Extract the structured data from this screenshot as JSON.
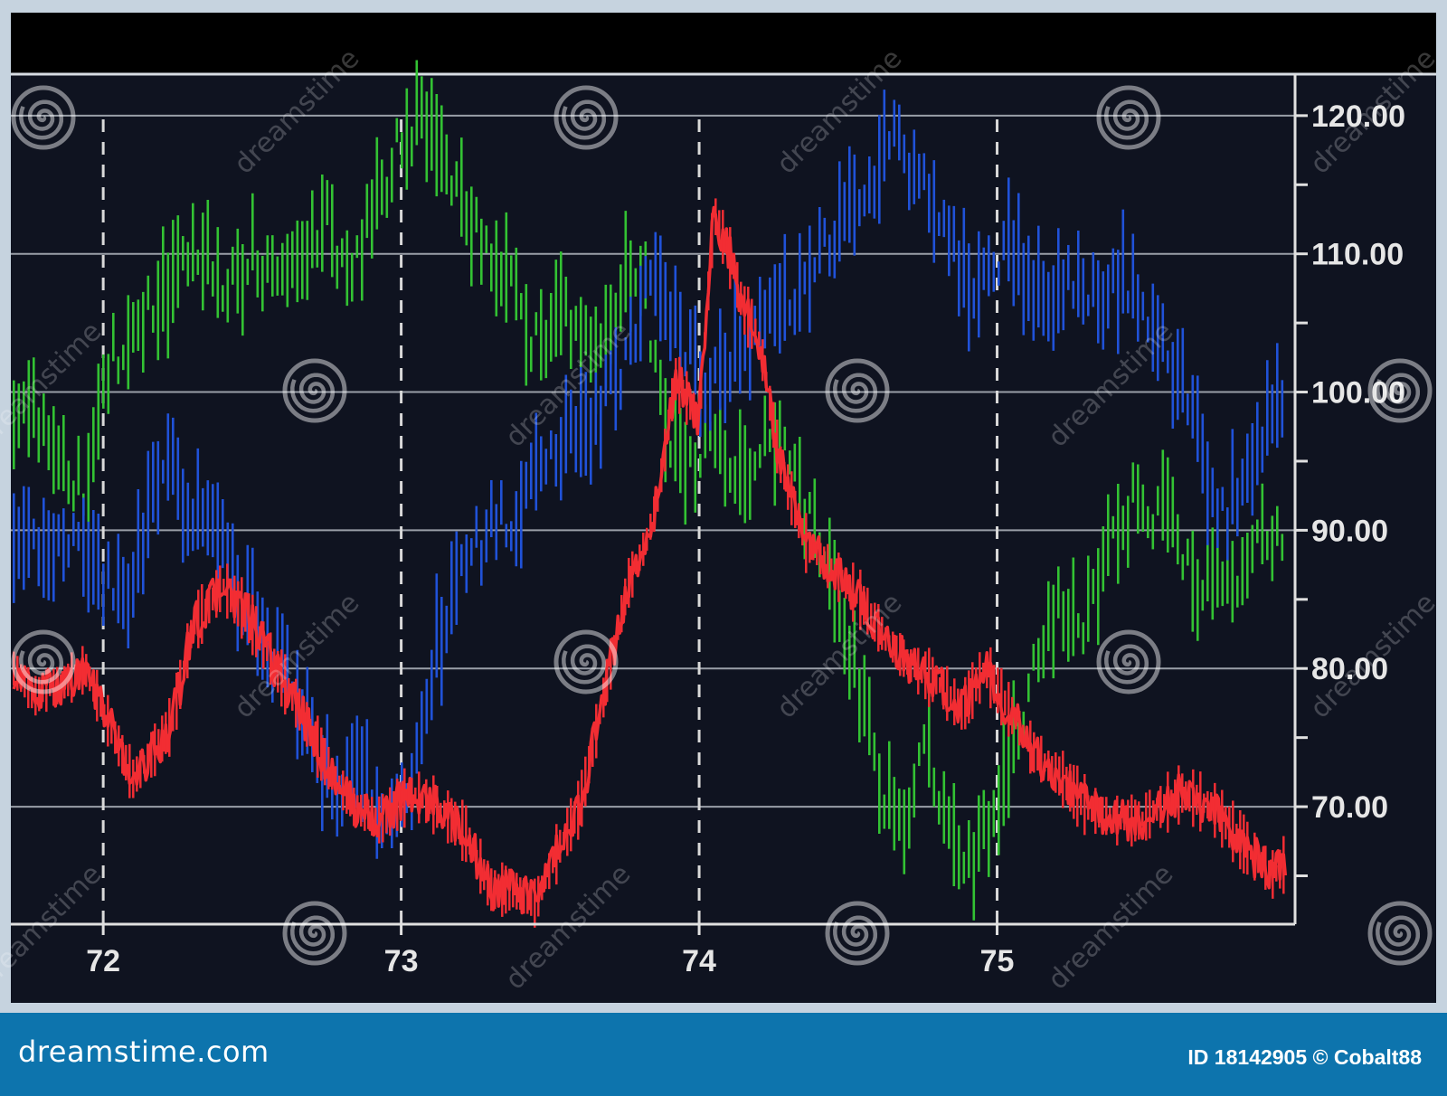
{
  "chart_data": {
    "type": "line",
    "style": "high-low bars with price line",
    "x_tick_labels": [
      "72",
      "73",
      "74",
      "75"
    ],
    "x_ticks": [
      72,
      73,
      74,
      75
    ],
    "xlim": [
      71.69,
      76.0
    ],
    "y_tick_labels": [
      "120.00",
      "110.00",
      "100.00",
      "90.00",
      "80.00",
      "70.00"
    ],
    "y_ticks": [
      120,
      110,
      100,
      90,
      80,
      70
    ],
    "y_minor_ticks": [
      115,
      105,
      95,
      85,
      75,
      65
    ],
    "ylim": [
      61.5,
      123
    ],
    "grid": {
      "horizontal": true,
      "vertical": "dashed at x ticks"
    },
    "series": [
      {
        "color": "#33c233",
        "style": "bars",
        "points": [
          [
            71.7,
            99
          ],
          [
            71.83,
            97
          ],
          [
            71.94,
            92
          ],
          [
            72.0,
            101
          ],
          [
            72.11,
            105
          ],
          [
            72.25,
            108
          ],
          [
            72.33,
            110
          ],
          [
            72.42,
            107
          ],
          [
            72.51,
            110
          ],
          [
            72.58,
            107
          ],
          [
            72.66,
            109
          ],
          [
            72.75,
            112
          ],
          [
            72.84,
            108
          ],
          [
            72.92,
            114
          ],
          [
            73.0,
            118
          ],
          [
            73.06,
            120
          ],
          [
            73.15,
            115
          ],
          [
            73.26,
            111
          ],
          [
            73.36,
            108
          ],
          [
            73.46,
            103
          ],
          [
            73.56,
            105
          ],
          [
            73.66,
            101
          ],
          [
            73.72,
            106
          ],
          [
            73.8,
            110
          ],
          [
            73.86,
            100
          ],
          [
            73.94,
            94
          ],
          [
            74.06,
            96
          ],
          [
            74.15,
            93
          ],
          [
            74.25,
            97
          ],
          [
            74.36,
            91
          ],
          [
            74.44,
            88
          ],
          [
            74.51,
            81
          ],
          [
            74.6,
            72
          ],
          [
            74.68,
            67
          ],
          [
            74.76,
            74
          ],
          [
            74.84,
            68
          ],
          [
            74.92,
            66
          ],
          [
            75.0,
            69
          ],
          [
            75.1,
            78
          ],
          [
            75.2,
            84
          ],
          [
            75.28,
            83
          ],
          [
            75.35,
            87
          ],
          [
            75.46,
            92
          ],
          [
            75.52,
            90
          ],
          [
            75.57,
            92
          ],
          [
            75.62,
            89
          ],
          [
            75.7,
            85
          ],
          [
            75.79,
            86
          ],
          [
            75.88,
            89
          ],
          [
            75.96,
            90
          ]
        ]
      },
      {
        "color": "#2052d8",
        "style": "bars",
        "points": [
          [
            71.7,
            90
          ],
          [
            71.78,
            88
          ],
          [
            71.86,
            90
          ],
          [
            71.94,
            87
          ],
          [
            72.0,
            86
          ],
          [
            72.07,
            85
          ],
          [
            72.15,
            90
          ],
          [
            72.2,
            95
          ],
          [
            72.27,
            92
          ],
          [
            72.36,
            90
          ],
          [
            72.44,
            86
          ],
          [
            72.53,
            82
          ],
          [
            72.62,
            79
          ],
          [
            72.72,
            73
          ],
          [
            72.8,
            71
          ],
          [
            72.88,
            72
          ],
          [
            72.95,
            68
          ],
          [
            73.03,
            70
          ],
          [
            73.1,
            80
          ],
          [
            73.2,
            87
          ],
          [
            73.3,
            90
          ],
          [
            73.38,
            91
          ],
          [
            73.46,
            95
          ],
          [
            73.56,
            97
          ],
          [
            73.66,
            98
          ],
          [
            73.74,
            101
          ],
          [
            73.83,
            108
          ],
          [
            73.92,
            105
          ],
          [
            74.02,
            100
          ],
          [
            74.12,
            103
          ],
          [
            74.25,
            105
          ],
          [
            74.37,
            108
          ],
          [
            74.46,
            112
          ],
          [
            74.56,
            115
          ],
          [
            74.66,
            118
          ],
          [
            74.78,
            114
          ],
          [
            74.9,
            108
          ],
          [
            74.98,
            109
          ],
          [
            75.05,
            110
          ],
          [
            75.14,
            107
          ],
          [
            75.26,
            108
          ],
          [
            75.36,
            107
          ],
          [
            75.46,
            108
          ],
          [
            75.56,
            103
          ],
          [
            75.66,
            98
          ],
          [
            75.74,
            90
          ],
          [
            75.82,
            93
          ],
          [
            75.9,
            97
          ],
          [
            75.97,
            99
          ]
        ]
      },
      {
        "color": "#f22d33",
        "style": "line",
        "points": [
          [
            71.7,
            80
          ],
          [
            71.77,
            78
          ],
          [
            71.87,
            79
          ],
          [
            71.94,
            80
          ],
          [
            72.04,
            75
          ],
          [
            72.1,
            72
          ],
          [
            72.17,
            74
          ],
          [
            72.23,
            76
          ],
          [
            72.3,
            83
          ],
          [
            72.4,
            86
          ],
          [
            72.48,
            84
          ],
          [
            72.58,
            80
          ],
          [
            72.66,
            77
          ],
          [
            72.75,
            73
          ],
          [
            72.84,
            70
          ],
          [
            72.93,
            69
          ],
          [
            73.03,
            71
          ],
          [
            73.12,
            70
          ],
          [
            73.22,
            68
          ],
          [
            73.3,
            64
          ],
          [
            73.38,
            64
          ],
          [
            73.45,
            63
          ],
          [
            73.53,
            67
          ],
          [
            73.6,
            70
          ],
          [
            73.68,
            78
          ],
          [
            73.76,
            86
          ],
          [
            73.82,
            89
          ],
          [
            73.86,
            92
          ],
          [
            73.92,
            101
          ],
          [
            74.0,
            98
          ],
          [
            74.05,
            113
          ],
          [
            74.1,
            110
          ],
          [
            74.15,
            106
          ],
          [
            74.2,
            104
          ],
          [
            74.27,
            95
          ],
          [
            74.36,
            89
          ],
          [
            74.45,
            87
          ],
          [
            74.54,
            85
          ],
          [
            74.63,
            82
          ],
          [
            74.72,
            80
          ],
          [
            74.8,
            79
          ],
          [
            74.88,
            77
          ],
          [
            74.96,
            80
          ],
          [
            75.04,
            77
          ],
          [
            75.12,
            74
          ],
          [
            75.22,
            72
          ],
          [
            75.3,
            70
          ],
          [
            75.4,
            69
          ],
          [
            75.48,
            69
          ],
          [
            75.55,
            70
          ],
          [
            75.62,
            71
          ],
          [
            75.72,
            70
          ],
          [
            75.8,
            68
          ],
          [
            75.88,
            66
          ],
          [
            75.93,
            65
          ],
          [
            75.97,
            66
          ]
        ]
      }
    ],
    "colors": {
      "panel": "#0f1320",
      "frame": "#c6d3df",
      "grid": "#9a9fa8",
      "axis": "#e0e0e0",
      "footer": "#0d74ad"
    }
  },
  "watermark": {
    "text": "dreamstime",
    "icon": "swirl-icon"
  },
  "footer": {
    "brand": "dreamstime.com",
    "credit": "ID 18142905 © Cobalt88"
  }
}
